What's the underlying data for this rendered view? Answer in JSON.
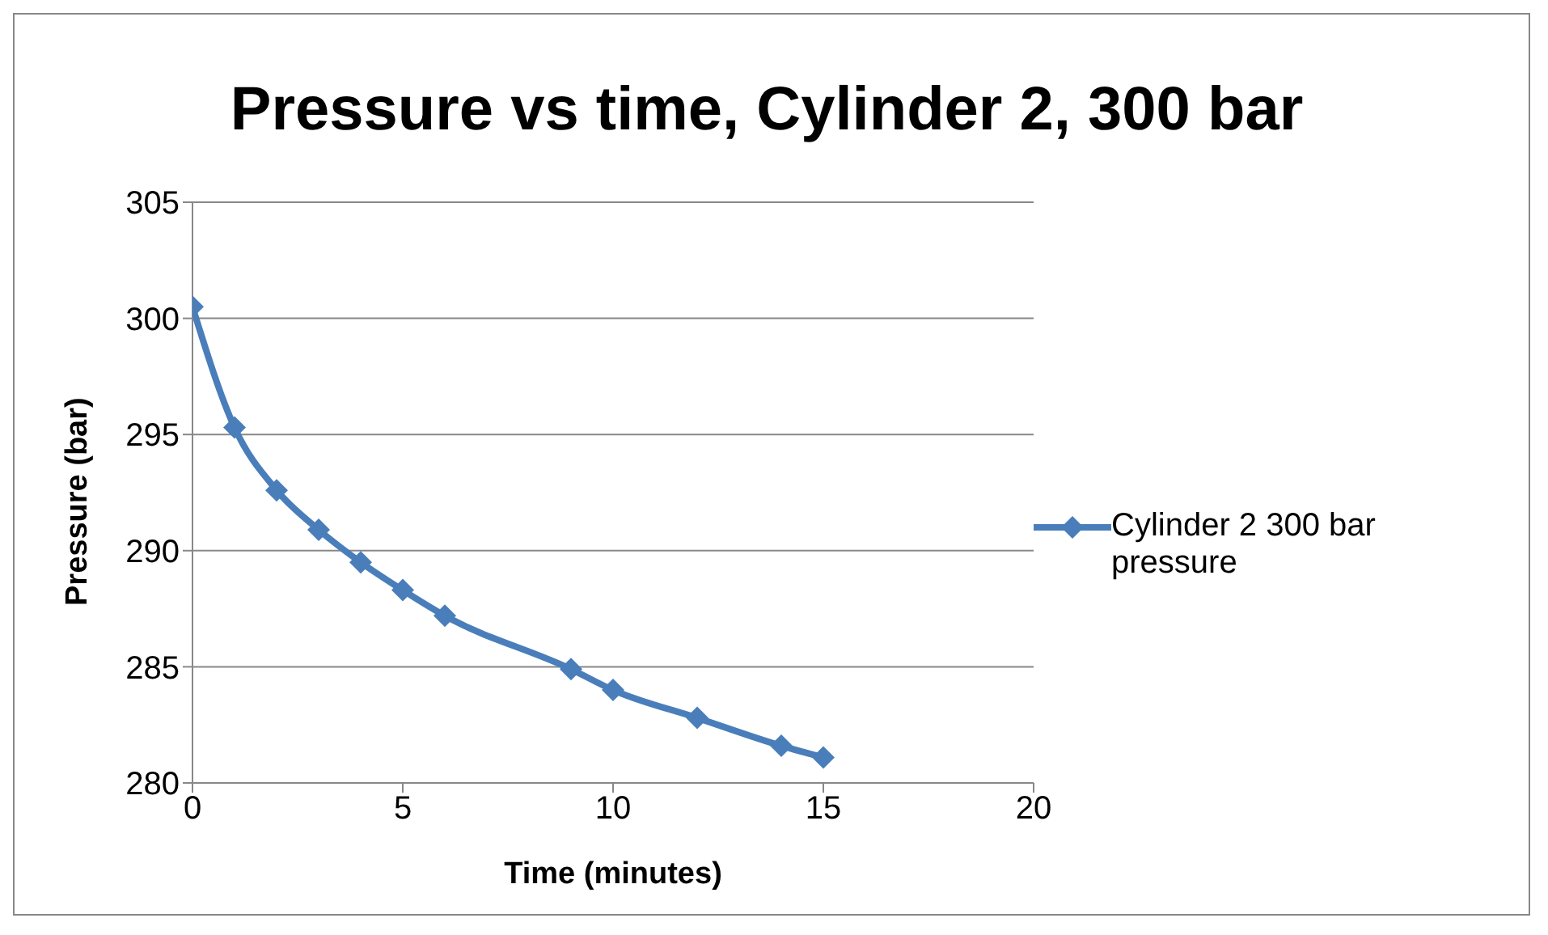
{
  "chart_data": {
    "type": "line",
    "title": "Pressure vs time, Cylinder 2, 300 bar",
    "xlabel": "Time (minutes)",
    "ylabel": "Pressure (bar)",
    "x": [
      0,
      1,
      2,
      3,
      4,
      5,
      6,
      9,
      10,
      12,
      14,
      15
    ],
    "series": [
      {
        "name": "Cylinder 2 300 bar pressure",
        "color": "#4a7ebb",
        "values": [
          300.5,
          295.3,
          292.6,
          290.9,
          289.5,
          288.3,
          287.2,
          284.9,
          284.0,
          282.8,
          281.6,
          281.1
        ]
      }
    ],
    "xlim": [
      0,
      20
    ],
    "xticks": [
      0,
      5,
      10,
      15,
      20
    ],
    "ylim": [
      280,
      305
    ],
    "yticks": [
      280,
      285,
      290,
      295,
      300,
      305
    ],
    "grid": "y",
    "legend": "right",
    "marker": "diamond",
    "line_style": "solid"
  }
}
